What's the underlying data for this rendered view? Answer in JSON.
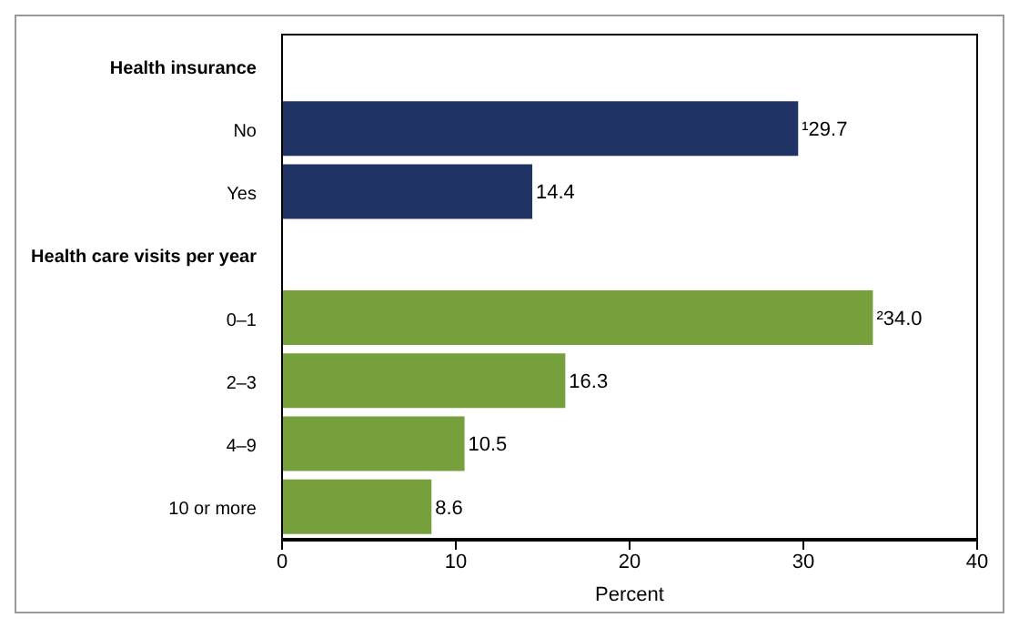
{
  "chart_data": {
    "type": "bar",
    "orientation": "horizontal",
    "categories": [
      "Health insurance",
      "No",
      "Yes",
      "Health care visits per year",
      "0–1",
      "2–3",
      "4–9",
      "10 or more"
    ],
    "values": [
      null,
      29.7,
      14.4,
      null,
      34.0,
      16.3,
      10.5,
      8.6
    ],
    "colors": [
      "#1f3364",
      "#1f3364",
      "#1f3364",
      "#76a03c",
      "#76a03c",
      "#76a03c",
      "#76a03c",
      "#76a03c"
    ],
    "value_labels": [
      null,
      "¹29.7",
      "14.4",
      null,
      "²34.0",
      "16.3",
      "10.5",
      "8.6"
    ],
    "xlim": [
      0,
      40
    ],
    "xticks": [
      0,
      10,
      20,
      30,
      40
    ],
    "xlabel": "Percent"
  }
}
